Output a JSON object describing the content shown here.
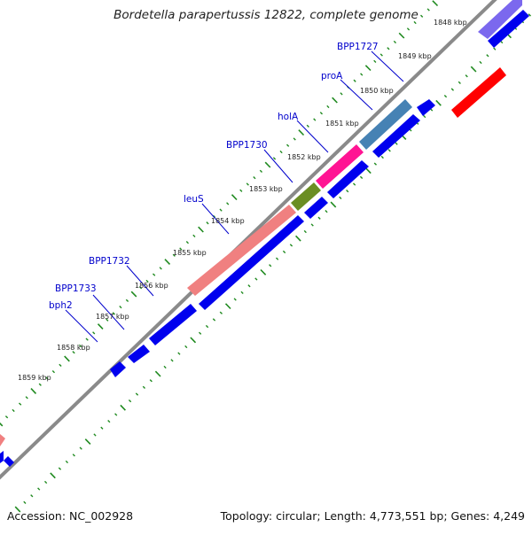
{
  "title": "Bordetella parapertussis 12822, complete genome",
  "footer": {
    "accession": "Accession: NC_002928",
    "summary": "Topology: circular; Length: 4,773,551 bp; Genes: 4,249"
  },
  "colors": {
    "backbone": "#8a8a8a",
    "tick": "#1f8a1f",
    "gene_blue": "#0000ee",
    "gene_label": "#0000cc",
    "leuS": "#f08080",
    "BPP1730": "#6b8e23",
    "holA": "#ff1493",
    "proA": "#4682b4",
    "BPP1727": "#7b68ee",
    "red_feature": "#ff0000"
  },
  "kbp_labels": [
    "1848 kbp",
    "1849 kbp",
    "1850 kbp",
    "1851 kbp",
    "1852 kbp",
    "1853 kbp",
    "1854 kbp",
    "1855 kbp",
    "1856 kbp",
    "1857 kbp",
    "1858 kbp",
    "1859 kbp"
  ],
  "gene_labels": [
    "BPP1727",
    "proA",
    "holA",
    "BPP1730",
    "leuS",
    "BPP1732",
    "BPP1733",
    "bph2"
  ]
}
